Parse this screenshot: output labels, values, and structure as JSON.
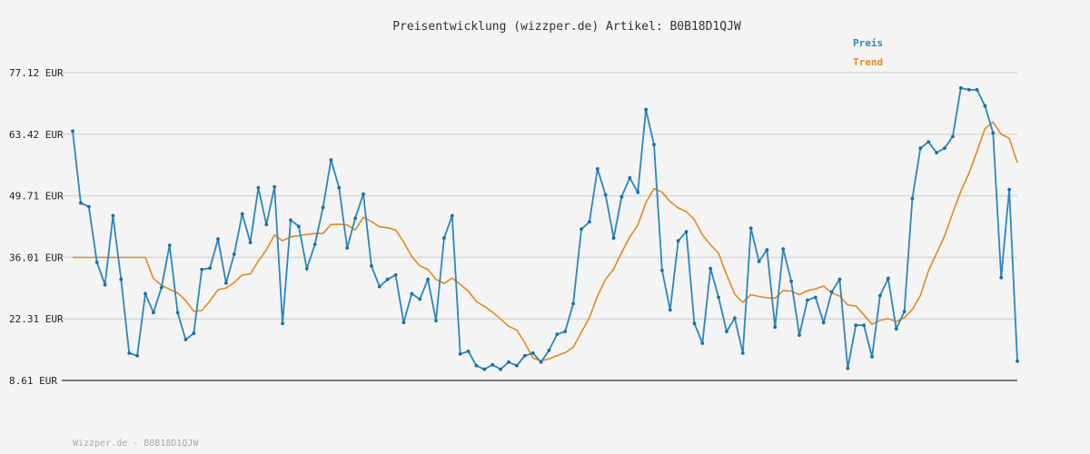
{
  "chart_data": {
    "type": "line",
    "title": "Preisentwicklung (wizzper.de) Artikel: B0B18D1QJW",
    "footer": "Wizzper.de - B0B18D1QJW",
    "y_unit": "EUR",
    "ylim": [
      8.61,
      77.12
    ],
    "yticks": [
      "77.12 EUR",
      "63.42 EUR",
      "49.71 EUR",
      "36.01 EUR",
      "22.31 EUR",
      "8.61 EUR"
    ],
    "ytick_values": [
      77.12,
      63.42,
      49.71,
      36.01,
      22.31,
      8.61
    ],
    "grid": true,
    "legend_position": "top-right",
    "colors": {
      "preis": "#2a86bf",
      "trend": "#e08a24",
      "grid": "#d8d8d8",
      "background": "#f4f4f4"
    },
    "series": [
      {
        "name": "Preis",
        "values": [
          64.1,
          48.1,
          47.3,
          34.9,
          29.9,
          45.3,
          31.1,
          14.7,
          14.1,
          27.9,
          23.7,
          29.3,
          38.7,
          23.7,
          17.7,
          19.1,
          33.3,
          33.6,
          40.1,
          30.3,
          36.7,
          45.7,
          39.3,
          51.5,
          43.3,
          51.7,
          21.3,
          44.3,
          42.9,
          33.5,
          38.9,
          47.1,
          57.7,
          51.5,
          38.1,
          44.7,
          50.1,
          34.1,
          29.5,
          31.1,
          32.1,
          21.5,
          27.9,
          26.7,
          31.1,
          21.9,
          40.3,
          45.3,
          14.5,
          15.1,
          11.9,
          11.1,
          12.1,
          11.1,
          12.7,
          11.9,
          14.1,
          14.7,
          12.7,
          15.3,
          18.9,
          19.5,
          25.7,
          42.3,
          43.9,
          55.7,
          49.9,
          40.3,
          49.5,
          53.7,
          50.5,
          68.9,
          61.1,
          33.1,
          24.3,
          39.7,
          41.7,
          21.3,
          16.9,
          33.5,
          27.1,
          19.5,
          22.5,
          14.7,
          42.5,
          35.1,
          37.7,
          20.5,
          37.9,
          30.7,
          18.7,
          26.5,
          27.1,
          21.5,
          28.3,
          31.1,
          11.3,
          20.9,
          20.9,
          13.9,
          27.5,
          31.3,
          20.1,
          23.9,
          49.1,
          60.3,
          61.7,
          59.3,
          60.3,
          62.9,
          73.7,
          73.3,
          73.3,
          69.7,
          63.7,
          31.5,
          51.1,
          12.9
        ]
      },
      {
        "name": "Trend",
        "values": [
          36.0,
          36.0,
          36.0,
          36.0,
          36.0,
          36.0,
          36.0,
          36.0,
          36.0,
          36.0,
          31.3,
          29.8,
          28.9,
          28.1,
          26.4,
          24.0,
          24.2,
          26.3,
          28.8,
          29.2,
          30.4,
          32.1,
          32.3,
          35.2,
          37.7,
          41.0,
          39.7,
          40.6,
          40.8,
          41.1,
          41.3,
          41.3,
          43.3,
          43.4,
          43.2,
          42.1,
          44.9,
          44.0,
          42.8,
          42.6,
          42.1,
          39.4,
          36.2,
          34.1,
          33.3,
          31.1,
          30.2,
          31.4,
          30.0,
          28.5,
          26.2,
          25.1,
          23.8,
          22.3,
          20.7,
          19.8,
          17.0,
          13.6,
          13.0,
          13.4,
          14.1,
          14.8,
          16.0,
          19.3,
          22.6,
          27.4,
          31.1,
          33.4,
          37.1,
          40.5,
          43.2,
          48.2,
          51.3,
          50.5,
          48.4,
          47.0,
          46.2,
          44.4,
          41.0,
          38.8,
          36.9,
          32.1,
          27.8,
          26.0,
          27.7,
          27.3,
          27.0,
          26.9,
          28.6,
          28.5,
          27.7,
          28.6,
          29.0,
          29.6,
          28.1,
          27.4,
          25.4,
          25.2,
          23.2,
          21.1,
          22.0,
          22.4,
          21.7,
          22.6,
          24.4,
          27.5,
          33.0,
          36.9,
          40.8,
          45.9,
          50.7,
          54.7,
          59.6,
          64.7,
          66.1,
          63.4,
          62.5,
          57.1
        ]
      }
    ]
  }
}
